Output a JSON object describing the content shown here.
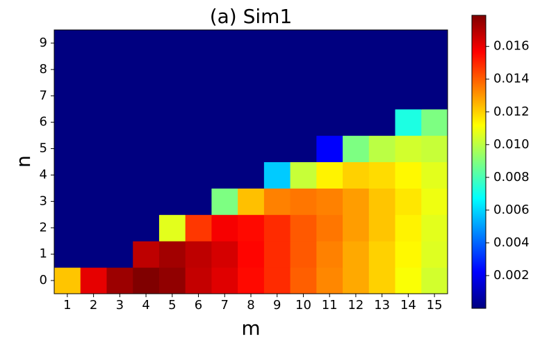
{
  "chart_data": {
    "type": "heatmap",
    "title": "(a) Sim1",
    "x_label": "m",
    "y_label": "n",
    "categories": [
      "1",
      "2",
      "3",
      "4",
      "5",
      "6",
      "7",
      "8",
      "9",
      "10",
      "11",
      "12",
      "13",
      "14",
      "15"
    ],
    "y_categories": [
      "0",
      "1",
      "2",
      "3",
      "4",
      "5",
      "6",
      "7",
      "8",
      "9"
    ],
    "colormap": "jet",
    "zlim": [
      0,
      0.0179
    ],
    "zticks": [
      0.002,
      0.004,
      0.006,
      0.008,
      {
        "value": 0.01,
        "label": "0.010"
      },
      0.012,
      0.014,
      0.016
    ],
    "values": [
      [
        0.0122,
        0.0161,
        0.0174,
        0.0179,
        0.0176,
        0.0167,
        0.0162,
        0.0155,
        0.0149,
        0.014,
        0.0133,
        0.0127,
        0.012,
        0.0111,
        0.0104
      ],
      [
        0,
        0,
        0,
        0.0168,
        0.0173,
        0.0168,
        0.0164,
        0.0156,
        0.0149,
        0.0141,
        0.0134,
        0.0127,
        0.012,
        0.0113,
        0.0106
      ],
      [
        0,
        0,
        0,
        0,
        0.0107,
        0.0147,
        0.0158,
        0.0155,
        0.0149,
        0.0141,
        0.0136,
        0.0129,
        0.0122,
        0.0114,
        0.0107
      ],
      [
        0,
        0,
        0,
        0,
        0,
        0,
        0.0089,
        0.0123,
        0.0134,
        0.0136,
        0.0134,
        0.0129,
        0.0122,
        0.0116,
        0.0109
      ],
      [
        0,
        0,
        0,
        0,
        0,
        0,
        0,
        0,
        0.0058,
        0.0102,
        0.0114,
        0.012,
        0.0118,
        0.0113,
        0.0107
      ],
      [
        0,
        0,
        0,
        0,
        0,
        0,
        0,
        0,
        0,
        0,
        0.0022,
        0.0089,
        0.01,
        0.0104,
        0.0102
      ],
      [
        0,
        0,
        0,
        0,
        0,
        0,
        0,
        0,
        0,
        0,
        0,
        0,
        0,
        0.0072,
        0.0089
      ],
      [
        0,
        0,
        0,
        0,
        0,
        0,
        0,
        0,
        0,
        0,
        0,
        0,
        0,
        0,
        0
      ],
      [
        0,
        0,
        0,
        0,
        0,
        0,
        0,
        0,
        0,
        0,
        0,
        0,
        0,
        0,
        0
      ],
      [
        0,
        0,
        0,
        0,
        0,
        0,
        0,
        0,
        0,
        0,
        0,
        0,
        0,
        0,
        0
      ]
    ]
  }
}
